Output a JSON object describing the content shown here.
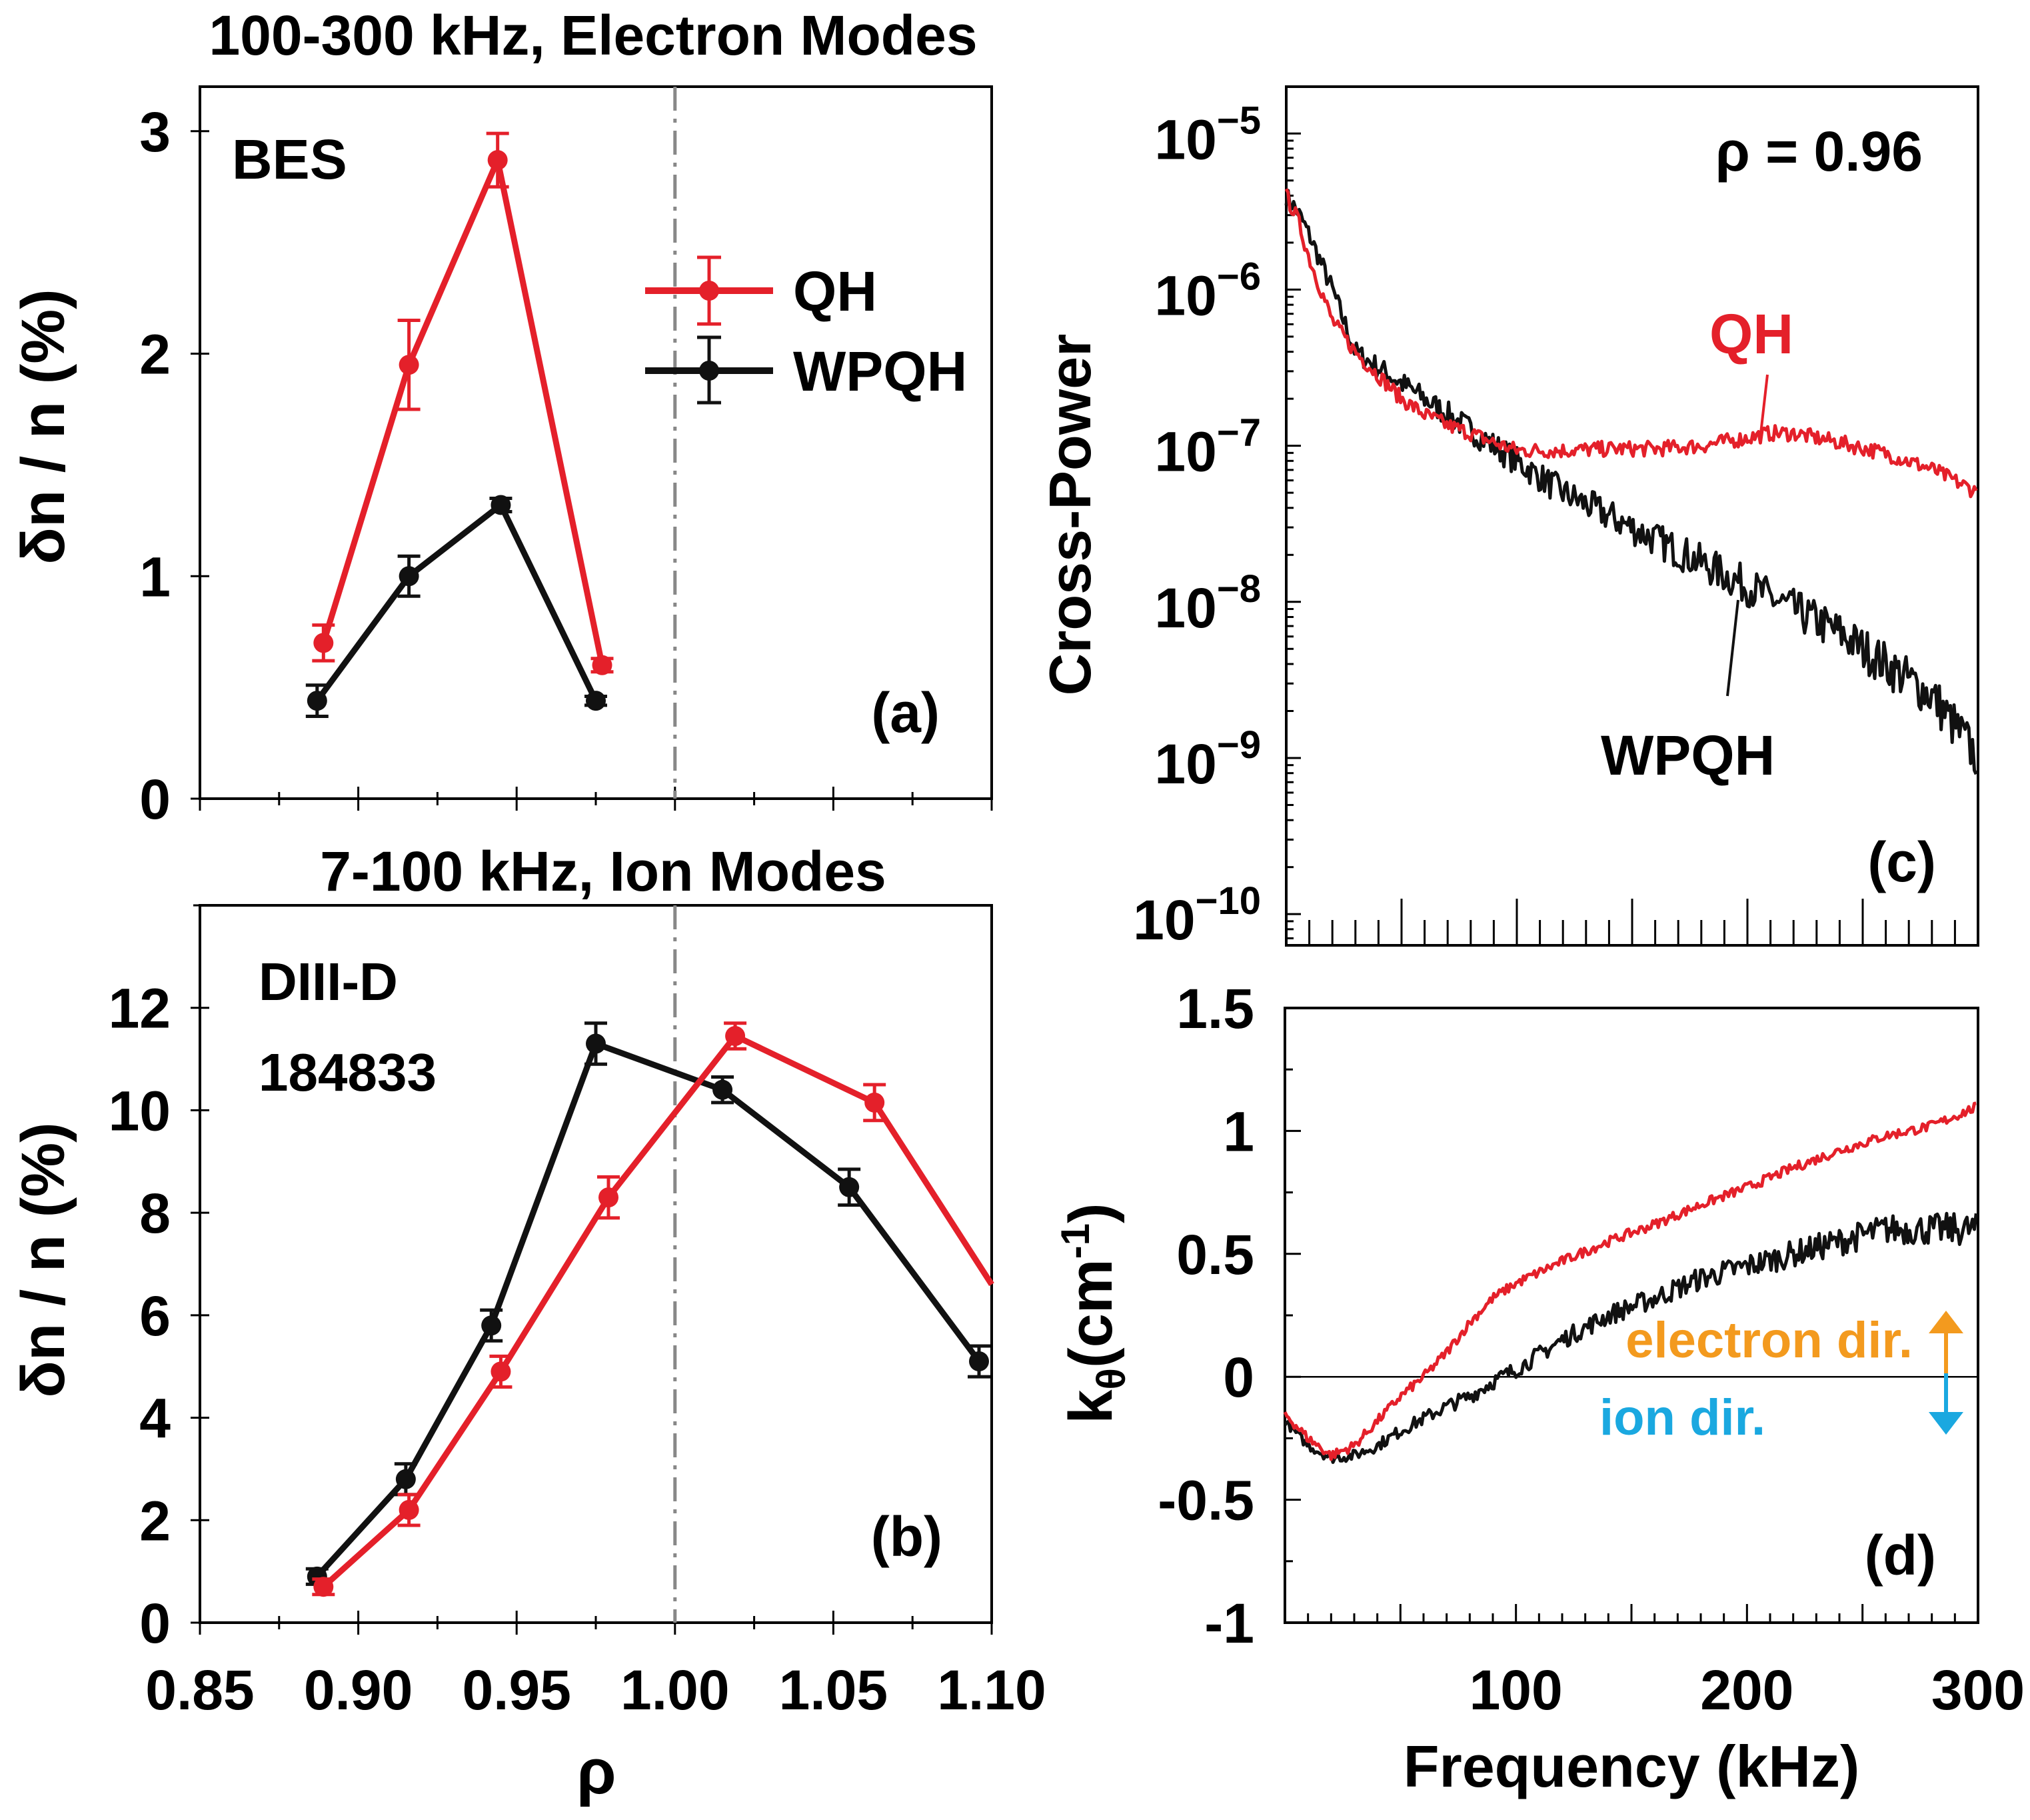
{
  "colors": {
    "qh": "#e4202a",
    "wpqh": "#111111",
    "electron": "#f39a1e",
    "ion": "#1aa8e0",
    "separatrix": "#888888"
  },
  "chart_data": [
    {
      "id": "a",
      "type": "line",
      "title": "100-300 kHz, Electron Modes",
      "ylabel": "δn / n (%)",
      "xlabel": "",
      "xlim": [
        0.85,
        1.1
      ],
      "ylim": [
        0,
        3.2
      ],
      "yticks": [
        "0",
        "1",
        "2",
        "3"
      ],
      "ytick_values": [
        0,
        1,
        2,
        3
      ],
      "panel_label": "(a)",
      "annotation": "BES",
      "separatrix_x": 1.0,
      "legend": [
        "QH",
        "WPQH"
      ],
      "series": [
        {
          "name": "QH",
          "x": [
            0.889,
            0.916,
            0.944,
            0.977
          ],
          "y": [
            0.7,
            1.95,
            2.87,
            0.6
          ],
          "err": [
            0.08,
            0.2,
            0.12,
            0.03
          ]
        },
        {
          "name": "WPQH",
          "x": [
            0.887,
            0.916,
            0.945,
            0.975
          ],
          "y": [
            0.44,
            1.0,
            1.32,
            0.44
          ],
          "err": [
            0.07,
            0.09,
            0.03,
            0.02
          ]
        }
      ]
    },
    {
      "id": "b",
      "type": "line",
      "title": "7-100 kHz, Ion Modes",
      "ylabel": "δn / n (%)",
      "xlabel": "ρ",
      "xlim": [
        0.85,
        1.1
      ],
      "ylim": [
        0,
        14
      ],
      "yticks": [
        "0",
        "2",
        "4",
        "6",
        "8",
        "10",
        "12"
      ],
      "ytick_values": [
        0,
        2,
        4,
        6,
        8,
        10,
        12
      ],
      "xticks": [
        "0.85",
        "0.90",
        "0.95",
        "1.00",
        "1.05",
        "1.10"
      ],
      "xtick_values": [
        0.85,
        0.9,
        0.95,
        1.0,
        1.05,
        1.1
      ],
      "panel_label": "(b)",
      "annotation": [
        "DIII-D",
        "184833"
      ],
      "separatrix_x": 1.0,
      "series": [
        {
          "name": "QH",
          "x": [
            0.889,
            0.916,
            0.945,
            0.979,
            1.019,
            1.063,
            1.1
          ],
          "y": [
            0.7,
            2.2,
            4.9,
            8.3,
            11.45,
            10.15,
            6.6
          ],
          "err": [
            0.15,
            0.3,
            0.3,
            0.4,
            0.25,
            0.35,
            0
          ]
        },
        {
          "name": "WPQH",
          "x": [
            0.887,
            0.915,
            0.942,
            0.975,
            1.015,
            1.055,
            1.096
          ],
          "y": [
            0.9,
            2.8,
            5.8,
            11.3,
            10.4,
            8.5,
            5.1
          ],
          "err": [
            0.15,
            0.3,
            0.3,
            0.4,
            0.25,
            0.35,
            0.3
          ]
        }
      ]
    },
    {
      "id": "c",
      "type": "line",
      "ylabel": "Cross-Power",
      "xlim": [
        0,
        300
      ],
      "ylim_log10": [
        -10.2,
        -4.7
      ],
      "yscale": "log",
      "yticks": [
        {
          "base": "10",
          "exp": "−5",
          "value": -5
        },
        {
          "base": "10",
          "exp": "−6",
          "value": -6
        },
        {
          "base": "10",
          "exp": "−7",
          "value": -7
        },
        {
          "base": "10",
          "exp": "−8",
          "value": -8
        },
        {
          "base": "10",
          "exp": "−9",
          "value": -9
        },
        {
          "base": "10",
          "exp": "−10",
          "value": -10
        }
      ],
      "panel_label": "(c)",
      "annotation": "ρ = 0.96",
      "series": [
        {
          "name": "QH",
          "label": "QH",
          "x": [
            0,
            5,
            10,
            20,
            30,
            40,
            50,
            60,
            70,
            80,
            90,
            100,
            120,
            140,
            160,
            180,
            200,
            210,
            220,
            240,
            260,
            280,
            300
          ],
          "log10y": [
            -5.4,
            -5.55,
            -5.8,
            -6.2,
            -6.4,
            -6.55,
            -6.7,
            -6.8,
            -6.87,
            -6.92,
            -6.98,
            -7.03,
            -7.03,
            -7.02,
            -7.02,
            -7.0,
            -6.95,
            -6.92,
            -6.92,
            -6.98,
            -7.05,
            -7.15,
            -7.3
          ]
        },
        {
          "name": "WPQH",
          "label": "WPQH",
          "x": [
            0,
            5,
            10,
            20,
            30,
            40,
            50,
            60,
            70,
            80,
            90,
            100,
            120,
            140,
            160,
            180,
            200,
            220,
            240,
            260,
            280,
            300
          ],
          "log10y": [
            -5.4,
            -5.5,
            -5.65,
            -6.0,
            -6.4,
            -6.5,
            -6.6,
            -6.7,
            -6.8,
            -6.9,
            -7.0,
            -7.1,
            -7.3,
            -7.45,
            -7.6,
            -7.75,
            -7.9,
            -8.05,
            -8.2,
            -8.4,
            -8.6,
            -9.0
          ]
        }
      ]
    },
    {
      "id": "d",
      "type": "line",
      "ylabel": "kθ(cm-1)",
      "ylabel_parts": {
        "k": "k",
        "sub": "θ",
        "unit": "(cm",
        "sup": "-1",
        "close": ")"
      },
      "xlabel": "Frequency (kHz)",
      "xlim": [
        0,
        300
      ],
      "ylim": [
        -1,
        1.5
      ],
      "yticks": [
        "-1",
        "-0.5",
        "0",
        "0.5",
        "1",
        "1.5"
      ],
      "ytick_values": [
        -1,
        -0.5,
        0,
        0.5,
        1,
        1.5
      ],
      "xticks": [
        "100",
        "200",
        "300"
      ],
      "xtick_values": [
        100,
        200,
        300
      ],
      "panel_label": "(d)",
      "direction_labels": {
        "electron": "electron dir.",
        "ion": "ion dir."
      },
      "series": [
        {
          "name": "QH",
          "x": [
            0,
            10,
            20,
            30,
            40,
            50,
            60,
            70,
            80,
            90,
            100,
            120,
            140,
            160,
            180,
            200,
            220,
            240,
            260,
            280,
            300
          ],
          "y": [
            -0.15,
            -0.25,
            -0.32,
            -0.28,
            -0.18,
            -0.08,
            0.0,
            0.1,
            0.22,
            0.32,
            0.38,
            0.47,
            0.55,
            0.62,
            0.7,
            0.77,
            0.85,
            0.92,
            0.98,
            1.02,
            1.1
          ]
        },
        {
          "name": "WPQH",
          "x": [
            0,
            10,
            20,
            30,
            40,
            50,
            60,
            70,
            80,
            90,
            100,
            120,
            140,
            160,
            180,
            200,
            220,
            240,
            260,
            280,
            300
          ],
          "y": [
            -0.18,
            -0.28,
            -0.33,
            -0.32,
            -0.28,
            -0.22,
            -0.17,
            -0.12,
            -0.08,
            -0.02,
            0.03,
            0.15,
            0.25,
            0.32,
            0.4,
            0.45,
            0.5,
            0.55,
            0.6,
            0.6,
            0.6
          ]
        }
      ]
    }
  ]
}
